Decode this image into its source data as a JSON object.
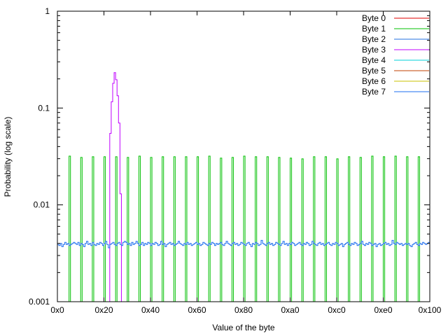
{
  "chart_data": {
    "type": "line",
    "style": "histogram-steps",
    "title": "",
    "xlabel": "Value of the byte",
    "ylabel": "Probability (log scale)",
    "xlim": [
      0,
      256
    ],
    "ylim": [
      0.001,
      1
    ],
    "yscale": "log",
    "grid": false,
    "legend_position": "top-right",
    "x_ticks": [
      {
        "value": 0,
        "label": "0x0"
      },
      {
        "value": 32,
        "label": "0x20"
      },
      {
        "value": 64,
        "label": "0x40"
      },
      {
        "value": 96,
        "label": "0x60"
      },
      {
        "value": 128,
        "label": "0x80"
      },
      {
        "value": 160,
        "label": "0xa0"
      },
      {
        "value": 192,
        "label": "0xc0"
      },
      {
        "value": 224,
        "label": "0xe0"
      },
      {
        "value": 256,
        "label": "0x100"
      }
    ],
    "y_ticks": [
      {
        "value": 1,
        "label": "1"
      },
      {
        "value": 0.1,
        "label": "0.1"
      },
      {
        "value": 0.01,
        "label": "0.01"
      },
      {
        "value": 0.001,
        "label": "0.001"
      }
    ],
    "series": [
      {
        "name": "Byte 0",
        "color": "#e00000",
        "points": []
      },
      {
        "name": "Byte 1",
        "color": "#00c000",
        "points": [
          [
            8,
            0.0319
          ],
          [
            16,
            0.0309
          ],
          [
            24,
            0.0314
          ],
          [
            32,
            0.0314
          ],
          [
            40,
            0.0314
          ],
          [
            48,
            0.0309
          ],
          [
            56,
            0.0319
          ],
          [
            64,
            0.0309
          ],
          [
            72,
            0.0314
          ],
          [
            80,
            0.0314
          ],
          [
            88,
            0.0314
          ],
          [
            96,
            0.0314
          ],
          [
            104,
            0.0319
          ],
          [
            112,
            0.0304
          ],
          [
            120,
            0.0309
          ],
          [
            128,
            0.0319
          ],
          [
            136,
            0.0314
          ],
          [
            144,
            0.0314
          ],
          [
            152,
            0.0309
          ],
          [
            160,
            0.0304
          ],
          [
            168,
            0.0299
          ],
          [
            176,
            0.0314
          ],
          [
            184,
            0.0314
          ],
          [
            192,
            0.0299
          ],
          [
            200,
            0.0314
          ],
          [
            208,
            0.0309
          ],
          [
            216,
            0.0319
          ],
          [
            224,
            0.0314
          ],
          [
            232,
            0.0319
          ],
          [
            240,
            0.0314
          ],
          [
            248,
            0.0314
          ]
        ]
      },
      {
        "name": "Byte 2",
        "color": "#2070e0",
        "points": []
      },
      {
        "name": "Byte 3",
        "color": "#c000ff",
        "points": [
          [
            36,
            0.0548
          ],
          [
            37,
            0.116
          ],
          [
            38,
            0.18
          ],
          [
            39,
            0.232
          ],
          [
            40,
            0.196
          ],
          [
            41,
            0.134
          ],
          [
            42,
            0.07
          ],
          [
            43,
            0.013
          ]
        ]
      },
      {
        "name": "Byte 4",
        "color": "#00d0d8",
        "points": []
      },
      {
        "name": "Byte 5",
        "color": "#c04000",
        "points": []
      },
      {
        "name": "Byte 6",
        "color": "#c8c000",
        "points": []
      },
      {
        "name": "Byte 7",
        "color": "#1e6ff0",
        "values": [
          0.0039,
          0.0038,
          0.004,
          0.0037,
          0.0039,
          0.0041,
          0.0039,
          0.004,
          0.0038,
          0.0039,
          0.004,
          0.0041,
          0.004,
          0.0039,
          0.0041,
          0.0038,
          0.004,
          0.0039,
          0.0037,
          0.004,
          0.0042,
          0.0039,
          0.004,
          0.0038,
          0.0041,
          0.0039,
          0.0038,
          0.004,
          0.0039,
          0.0041,
          0.004,
          0.0038,
          0.004,
          0.0042,
          0.0039,
          0.0036,
          0.0039,
          0.004,
          0.0041,
          0.0039,
          0.0038,
          0.004,
          0.0041,
          0.0039,
          0.0038,
          0.0041,
          0.0042,
          0.0041,
          0.0039,
          0.004,
          0.0038,
          0.0041,
          0.0039,
          0.004,
          0.0042,
          0.004,
          0.0038,
          0.0039,
          0.0041,
          0.0038,
          0.004,
          0.0039,
          0.0041,
          0.004,
          0.0038,
          0.004,
          0.0039,
          0.0041,
          0.004,
          0.0038,
          0.0039,
          0.0042,
          0.0039,
          0.004,
          0.0037,
          0.0039,
          0.004,
          0.0041,
          0.0039,
          0.004,
          0.0038,
          0.0039,
          0.004,
          0.0042,
          0.004,
          0.0039,
          0.0038,
          0.004,
          0.0039,
          0.0041,
          0.0039,
          0.004,
          0.0038,
          0.0039,
          0.004,
          0.0041,
          0.0039,
          0.004,
          0.0038,
          0.0039,
          0.0041,
          0.004,
          0.0039,
          0.0038,
          0.004,
          0.0039,
          0.0041,
          0.004,
          0.0038,
          0.004,
          0.0039,
          0.004,
          0.0041,
          0.0039,
          0.0038,
          0.004,
          0.0042,
          0.004,
          0.0039,
          0.0038,
          0.004,
          0.0041,
          0.0039,
          0.004,
          0.0038,
          0.0039,
          0.0041,
          0.004,
          0.0039,
          0.0038,
          0.004,
          0.0041,
          0.0039,
          0.0037,
          0.004,
          0.0039,
          0.0041,
          0.004,
          0.0038,
          0.0039,
          0.0043,
          0.004,
          0.0039,
          0.0038,
          0.004,
          0.0041,
          0.0039,
          0.004,
          0.0038,
          0.0039,
          0.0041,
          0.004,
          0.0039,
          0.0038,
          0.004,
          0.0042,
          0.0039,
          0.004,
          0.0038,
          0.004,
          0.0039,
          0.0041,
          0.004,
          0.0038,
          0.0039,
          0.004,
          0.0041,
          0.0039,
          0.0038,
          0.004,
          0.0039,
          0.0041,
          0.004,
          0.0038,
          0.0039,
          0.0042,
          0.004,
          0.0039,
          0.0038,
          0.004,
          0.0041,
          0.0039,
          0.004,
          0.0038,
          0.0039,
          0.004,
          0.0041,
          0.0039,
          0.0038,
          0.004,
          0.0039,
          0.0041,
          0.004,
          0.0038,
          0.0039,
          0.004,
          0.0037,
          0.0039,
          0.004,
          0.0041,
          0.0039,
          0.0038,
          0.004,
          0.0039,
          0.0041,
          0.004,
          0.0038,
          0.0039,
          0.004,
          0.0042,
          0.0039,
          0.0038,
          0.004,
          0.0039,
          0.0041,
          0.004,
          0.0038,
          0.0039,
          0.004,
          0.0037,
          0.0039,
          0.004,
          0.0038,
          0.0039,
          0.004,
          0.0041,
          0.0039,
          0.004,
          0.0038,
          0.0039,
          0.0043,
          0.004,
          0.0039,
          0.0041,
          0.004,
          0.0039,
          0.004,
          0.0038,
          0.0039,
          0.004,
          0.0039,
          0.004,
          0.0038,
          0.0037,
          0.0039,
          0.004,
          0.0041,
          0.0039,
          0.0038,
          0.004,
          0.0039,
          0.0041,
          0.004,
          0.0039,
          0.004,
          0.0041
        ]
      }
    ]
  }
}
